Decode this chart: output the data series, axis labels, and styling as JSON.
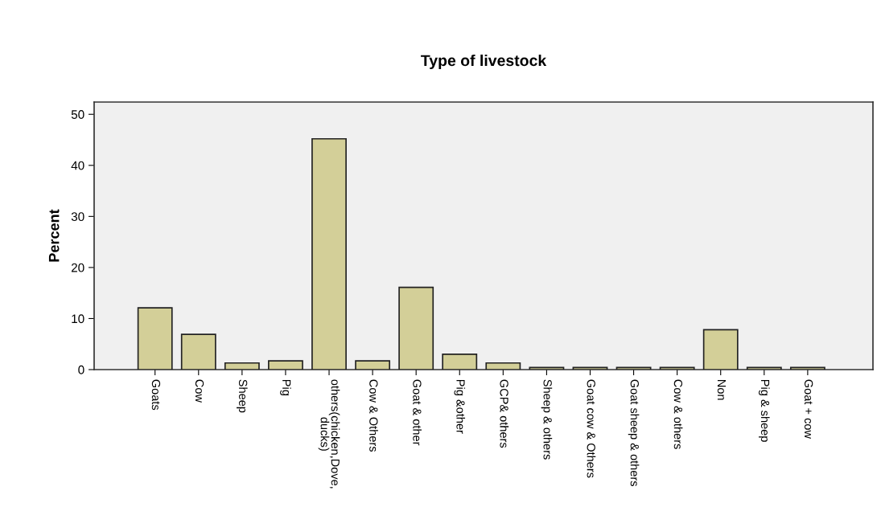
{
  "chart_data": {
    "type": "bar",
    "title": "Type of livestock",
    "ylabel": "Percent",
    "categories": [
      "Goats",
      "Cow",
      "Sheep",
      "Pig",
      "others(chicken,Dove,\nducks)",
      "Cow & Others",
      "Goat & other",
      "Pig &other",
      "GCP& others",
      "Sheep & others",
      "Goat cow & Others",
      "Goat sheep & others",
      "Cow & others",
      "Non",
      "Pig & sheep",
      "Goat + cow"
    ],
    "values": [
      12.1,
      6.9,
      1.3,
      1.7,
      45.2,
      1.7,
      16.1,
      3.0,
      1.3,
      0.4,
      0.4,
      0.4,
      0.4,
      7.8,
      0.4,
      0.4
    ],
    "color": "#d3cf98",
    "ylim": [
      0,
      52.4
    ],
    "yticks": [
      0,
      10,
      20,
      30,
      40,
      50
    ],
    "grid": false
  }
}
